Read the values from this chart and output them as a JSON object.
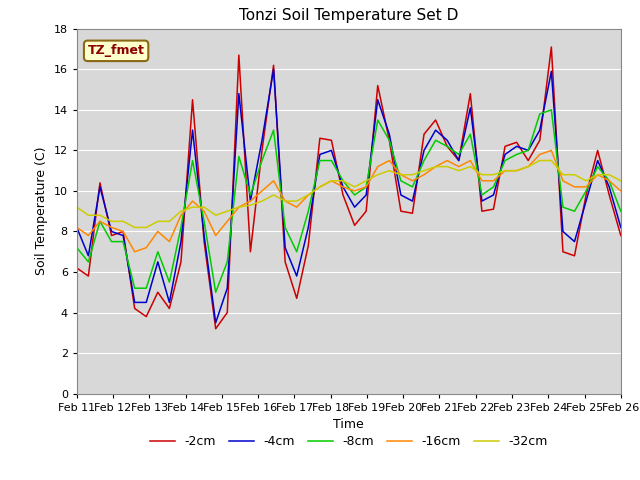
{
  "title": "Tonzi Soil Temperature Set D",
  "xlabel": "Time",
  "ylabel": "Soil Temperature (C)",
  "ylim": [
    0,
    18
  ],
  "xtick_labels": [
    "Feb 11",
    "Feb 12",
    "Feb 13",
    "Feb 14",
    "Feb 15",
    "Feb 16",
    "Feb 17",
    "Feb 18",
    "Feb 19",
    "Feb 20",
    "Feb 21",
    "Feb 22",
    "Feb 23",
    "Feb 24",
    "Feb 25",
    "Feb 26"
  ],
  "legend_entries": [
    "-2cm",
    "-4cm",
    "-8cm",
    "-16cm",
    "-32cm"
  ],
  "line_colors": [
    "#cc0000",
    "#0000cc",
    "#00cc00",
    "#ff8800",
    "#cccc00"
  ],
  "annotation_text": "TZ_fmet",
  "title_fontsize": 11,
  "label_fontsize": 9,
  "tick_fontsize": 8,
  "t2": [
    6.2,
    5.8,
    10.4,
    7.8,
    8.0,
    4.2,
    3.8,
    5.0,
    4.2,
    6.5,
    14.5,
    7.5,
    3.2,
    4.0,
    16.7,
    7.0,
    12.0,
    16.2,
    6.5,
    4.7,
    7.3,
    12.6,
    12.5,
    9.8,
    8.3,
    9.0,
    15.2,
    12.5,
    9.0,
    8.9,
    12.8,
    13.5,
    12.2,
    11.5,
    14.8,
    9.0,
    9.1,
    12.2,
    12.4,
    11.5,
    12.5,
    17.1,
    7.0,
    6.8,
    9.8,
    12.0,
    9.8,
    7.8
  ],
  "t4": [
    8.2,
    6.8,
    10.2,
    8.0,
    7.8,
    4.5,
    4.5,
    6.5,
    4.5,
    7.5,
    13.0,
    7.8,
    3.5,
    5.2,
    14.8,
    9.5,
    12.5,
    16.0,
    7.2,
    5.8,
    8.2,
    11.8,
    12.0,
    10.2,
    9.2,
    9.8,
    14.5,
    12.8,
    9.8,
    9.5,
    12.0,
    13.0,
    12.5,
    11.5,
    14.1,
    9.5,
    9.8,
    11.8,
    12.2,
    12.0,
    13.0,
    15.9,
    8.0,
    7.5,
    9.5,
    11.5,
    10.2,
    8.2
  ],
  "t8": [
    7.2,
    6.5,
    8.5,
    7.5,
    7.5,
    5.2,
    5.2,
    7.0,
    5.5,
    8.2,
    11.5,
    8.5,
    5.0,
    6.5,
    11.7,
    9.8,
    11.5,
    13.0,
    8.2,
    7.0,
    9.0,
    11.5,
    11.5,
    10.5,
    9.8,
    10.2,
    13.5,
    12.5,
    10.5,
    10.2,
    11.5,
    12.5,
    12.2,
    11.8,
    12.8,
    9.8,
    10.2,
    11.5,
    11.8,
    12.0,
    13.8,
    14.0,
    9.2,
    9.0,
    10.0,
    11.2,
    10.5,
    9.0
  ],
  "t16": [
    8.2,
    7.8,
    8.5,
    8.2,
    8.0,
    7.0,
    7.2,
    8.0,
    7.5,
    8.8,
    9.5,
    9.0,
    7.8,
    8.5,
    9.2,
    9.5,
    10.0,
    10.5,
    9.5,
    9.2,
    9.8,
    10.2,
    10.5,
    10.2,
    10.0,
    10.2,
    11.2,
    11.5,
    10.8,
    10.5,
    10.8,
    11.2,
    11.5,
    11.2,
    11.5,
    10.5,
    10.5,
    11.0,
    11.0,
    11.2,
    11.8,
    12.0,
    10.5,
    10.2,
    10.2,
    10.8,
    10.5,
    10.0
  ],
  "t32": [
    9.2,
    8.8,
    8.8,
    8.5,
    8.5,
    8.2,
    8.2,
    8.5,
    8.5,
    9.0,
    9.2,
    9.2,
    8.8,
    9.0,
    9.2,
    9.3,
    9.5,
    9.8,
    9.5,
    9.5,
    9.8,
    10.2,
    10.5,
    10.5,
    10.2,
    10.5,
    10.8,
    11.0,
    10.8,
    10.8,
    11.0,
    11.2,
    11.2,
    11.0,
    11.2,
    10.8,
    10.8,
    11.0,
    11.0,
    11.2,
    11.5,
    11.5,
    10.8,
    10.8,
    10.5,
    10.8,
    10.8,
    10.5
  ]
}
